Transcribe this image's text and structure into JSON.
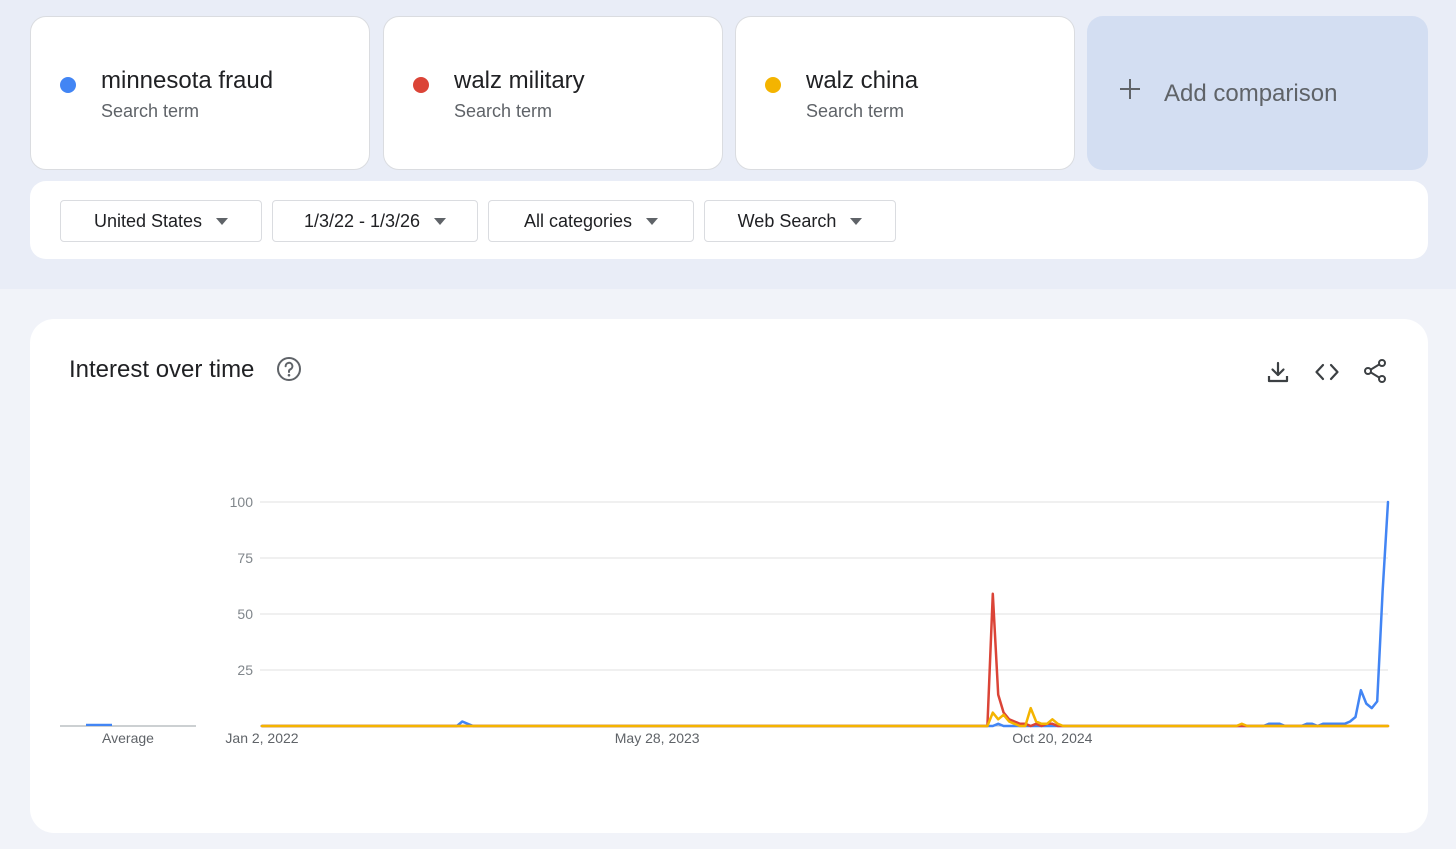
{
  "terms": [
    {
      "name": "minnesota fraud",
      "sub": "Search term",
      "color": "#4285f4"
    },
    {
      "name": "walz military",
      "sub": "Search term",
      "color": "#db4437"
    },
    {
      "name": "walz china",
      "sub": "Search term",
      "color": "#f4b400"
    }
  ],
  "add_comparison": "Add comparison",
  "filters": {
    "region": "United States",
    "date_range": "1/3/22 - 1/3/26",
    "category": "All categories",
    "search_type": "Web Search"
  },
  "panel": {
    "title": "Interest over time",
    "icons": [
      "help-icon",
      "download-icon",
      "embed-icon",
      "share-icon"
    ]
  },
  "chart_data": {
    "type": "line",
    "average_label": "Average",
    "averages": [
      1,
      0,
      0
    ],
    "yticks": [
      "100",
      "75",
      "50",
      "25"
    ],
    "ylim": [
      0,
      100
    ],
    "x_range": [
      "2022-01-02",
      "2025-12-28"
    ],
    "xtick_labels": [
      {
        "date": "2022-01-02",
        "label": "Jan 2, 2022"
      },
      {
        "date": "2023-05-28",
        "label": "May 28, 2023"
      },
      {
        "date": "2024-10-20",
        "label": "Oct 20, 2024"
      }
    ],
    "grid": true,
    "series": [
      {
        "name": "minnesota fraud",
        "color": "#4285f4",
        "points": [
          [
            "2022-01-02",
            0
          ],
          [
            "2022-09-11",
            0
          ],
          [
            "2022-09-18",
            2
          ],
          [
            "2022-09-25",
            1
          ],
          [
            "2022-10-02",
            0
          ],
          [
            "2024-08-04",
            0
          ],
          [
            "2024-08-11",
            1
          ],
          [
            "2024-08-18",
            0
          ],
          [
            "2025-07-20",
            0
          ],
          [
            "2025-07-27",
            1
          ],
          [
            "2025-08-03",
            1
          ],
          [
            "2025-08-10",
            1
          ],
          [
            "2025-08-17",
            0
          ],
          [
            "2025-09-07",
            0
          ],
          [
            "2025-09-14",
            1
          ],
          [
            "2025-09-21",
            1
          ],
          [
            "2025-09-28",
            0
          ],
          [
            "2025-10-05",
            1
          ],
          [
            "2025-10-12",
            1
          ],
          [
            "2025-10-19",
            1
          ],
          [
            "2025-10-26",
            1
          ],
          [
            "2025-11-02",
            1
          ],
          [
            "2025-11-09",
            2
          ],
          [
            "2025-11-16",
            4
          ],
          [
            "2025-11-23",
            16
          ],
          [
            "2025-11-30",
            10
          ],
          [
            "2025-12-07",
            8
          ],
          [
            "2025-12-14",
            11
          ],
          [
            "2025-12-21",
            60
          ],
          [
            "2025-12-28",
            100
          ]
        ]
      },
      {
        "name": "walz military",
        "color": "#db4437",
        "points": [
          [
            "2022-01-02",
            0
          ],
          [
            "2024-07-28",
            0
          ],
          [
            "2024-08-04",
            59
          ],
          [
            "2024-08-11",
            14
          ],
          [
            "2024-08-18",
            6
          ],
          [
            "2024-08-25",
            3
          ],
          [
            "2024-09-01",
            2
          ],
          [
            "2024-09-08",
            1
          ],
          [
            "2024-09-15",
            1
          ],
          [
            "2024-09-22",
            0
          ],
          [
            "2024-09-29",
            1
          ],
          [
            "2024-10-06",
            0
          ],
          [
            "2024-10-13",
            1
          ],
          [
            "2024-10-20",
            1
          ],
          [
            "2024-10-27",
            0
          ],
          [
            "2025-12-28",
            0
          ]
        ]
      },
      {
        "name": "walz china",
        "color": "#f4b400",
        "points": [
          [
            "2022-01-02",
            0
          ],
          [
            "2024-07-28",
            0
          ],
          [
            "2024-08-04",
            6
          ],
          [
            "2024-08-11",
            3
          ],
          [
            "2024-08-18",
            5
          ],
          [
            "2024-08-25",
            2
          ],
          [
            "2024-09-01",
            1
          ],
          [
            "2024-09-08",
            0
          ],
          [
            "2024-09-15",
            0
          ],
          [
            "2024-09-22",
            8
          ],
          [
            "2024-09-29",
            2
          ],
          [
            "2024-10-06",
            1
          ],
          [
            "2024-10-13",
            1
          ],
          [
            "2024-10-20",
            3
          ],
          [
            "2024-10-27",
            1
          ],
          [
            "2024-11-03",
            0
          ],
          [
            "2025-06-15",
            0
          ],
          [
            "2025-06-22",
            1
          ],
          [
            "2025-06-29",
            0
          ],
          [
            "2025-12-28",
            0
          ]
        ]
      }
    ]
  }
}
